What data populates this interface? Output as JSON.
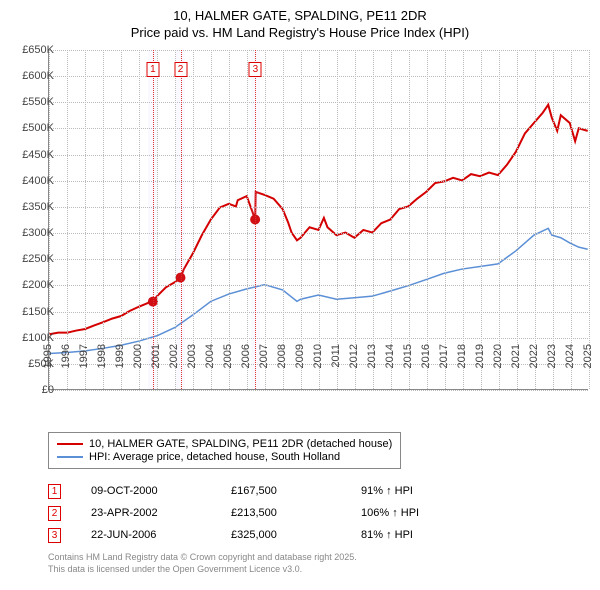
{
  "title_line1": "10, HALMER GATE, SPALDING, PE11 2DR",
  "title_line2": "Price paid vs. HM Land Registry's House Price Index (HPI)",
  "chart": {
    "type": "line",
    "background_color": "#ffffff",
    "grid_color": "#bbbbbb",
    "axis_color": "#888888",
    "x": {
      "min": 1995,
      "max": 2025,
      "tick_step": 1,
      "label_fontsize": 11
    },
    "y": {
      "min": 0,
      "max": 650000,
      "tick_step": 50000,
      "label_fontsize": 11,
      "tick_labels": [
        "£0",
        "£50K",
        "£100K",
        "£150K",
        "£200K",
        "£250K",
        "£300K",
        "£350K",
        "£400K",
        "£450K",
        "£500K",
        "£550K",
        "£600K",
        "£650K"
      ]
    },
    "series": [
      {
        "name": "10, HALMER GATE, SPALDING, PE11 2DR (detached house)",
        "color": "#d40000",
        "line_width": 2,
        "data": [
          [
            1995,
            105000
          ],
          [
            1995.5,
            108000
          ],
          [
            1996,
            108000
          ],
          [
            1996.5,
            112000
          ],
          [
            1997,
            115000
          ],
          [
            1997.5,
            122000
          ],
          [
            1998,
            128000
          ],
          [
            1998.5,
            135000
          ],
          [
            1999,
            140000
          ],
          [
            1999.5,
            150000
          ],
          [
            2000,
            158000
          ],
          [
            2000.5,
            165000
          ],
          [
            2000.77,
            167500
          ],
          [
            2001,
            178000
          ],
          [
            2001.5,
            195000
          ],
          [
            2002,
            205000
          ],
          [
            2002.31,
            213500
          ],
          [
            2002.5,
            230000
          ],
          [
            2003,
            260000
          ],
          [
            2003.5,
            295000
          ],
          [
            2004,
            325000
          ],
          [
            2004.5,
            348000
          ],
          [
            2005,
            355000
          ],
          [
            2005.4,
            350000
          ],
          [
            2005.5,
            362000
          ],
          [
            2006,
            370000
          ],
          [
            2006.47,
            325000
          ],
          [
            2006.5,
            378000
          ],
          [
            2007,
            372000
          ],
          [
            2007.5,
            365000
          ],
          [
            2008,
            345000
          ],
          [
            2008.3,
            320000
          ],
          [
            2008.5,
            300000
          ],
          [
            2008.8,
            285000
          ],
          [
            2009,
            290000
          ],
          [
            2009.5,
            310000
          ],
          [
            2010,
            305000
          ],
          [
            2010.3,
            328000
          ],
          [
            2010.5,
            310000
          ],
          [
            2011,
            295000
          ],
          [
            2011.5,
            300000
          ],
          [
            2012,
            290000
          ],
          [
            2012.5,
            305000
          ],
          [
            2013,
            300000
          ],
          [
            2013.5,
            318000
          ],
          [
            2014,
            325000
          ],
          [
            2014.5,
            345000
          ],
          [
            2015,
            350000
          ],
          [
            2015.5,
            365000
          ],
          [
            2016,
            378000
          ],
          [
            2016.5,
            395000
          ],
          [
            2017,
            398000
          ],
          [
            2017.5,
            405000
          ],
          [
            2018,
            400000
          ],
          [
            2018.5,
            412000
          ],
          [
            2019,
            408000
          ],
          [
            2019.5,
            415000
          ],
          [
            2020,
            410000
          ],
          [
            2020.5,
            430000
          ],
          [
            2021,
            455000
          ],
          [
            2021.5,
            490000
          ],
          [
            2022,
            510000
          ],
          [
            2022.5,
            530000
          ],
          [
            2022.8,
            545000
          ],
          [
            2023,
            520000
          ],
          [
            2023.3,
            495000
          ],
          [
            2023.5,
            525000
          ],
          [
            2024,
            510000
          ],
          [
            2024.3,
            475000
          ],
          [
            2024.5,
            500000
          ],
          [
            2025,
            495000
          ]
        ]
      },
      {
        "name": "HPI: Average price, detached house, South Holland",
        "color": "#5b8fd6",
        "line_width": 1.5,
        "data": [
          [
            1995,
            68000
          ],
          [
            1996,
            70000
          ],
          [
            1997,
            73000
          ],
          [
            1998,
            78000
          ],
          [
            1999,
            84000
          ],
          [
            2000,
            92000
          ],
          [
            2001,
            102000
          ],
          [
            2002,
            118000
          ],
          [
            2003,
            142000
          ],
          [
            2004,
            168000
          ],
          [
            2005,
            182000
          ],
          [
            2006,
            192000
          ],
          [
            2007,
            200000
          ],
          [
            2008,
            190000
          ],
          [
            2008.8,
            168000
          ],
          [
            2009,
            172000
          ],
          [
            2010,
            180000
          ],
          [
            2011,
            172000
          ],
          [
            2012,
            175000
          ],
          [
            2013,
            178000
          ],
          [
            2014,
            188000
          ],
          [
            2015,
            198000
          ],
          [
            2016,
            210000
          ],
          [
            2017,
            222000
          ],
          [
            2018,
            230000
          ],
          [
            2019,
            235000
          ],
          [
            2020,
            240000
          ],
          [
            2021,
            265000
          ],
          [
            2022,
            295000
          ],
          [
            2022.8,
            308000
          ],
          [
            2023,
            295000
          ],
          [
            2023.5,
            290000
          ],
          [
            2024,
            280000
          ],
          [
            2024.5,
            272000
          ],
          [
            2025,
            268000
          ]
        ]
      }
    ],
    "scatter_points": [
      {
        "x": 2000.77,
        "y": 167500,
        "color": "#d40000",
        "size": 5
      },
      {
        "x": 2002.31,
        "y": 213500,
        "color": "#d40000",
        "size": 5
      },
      {
        "x": 2006.47,
        "y": 325000,
        "color": "#d40000",
        "size": 5
      }
    ],
    "event_markers": [
      {
        "n": "1",
        "x": 2000.77,
        "band_half_width": 0.25
      },
      {
        "n": "2",
        "x": 2002.31,
        "band_half_width": 0.25
      },
      {
        "n": "3",
        "x": 2006.47,
        "band_half_width": 0.25
      }
    ],
    "event_marker_border": "#d00000"
  },
  "legend": {
    "items": [
      {
        "color": "#d40000",
        "label": "10, HALMER GATE, SPALDING, PE11 2DR (detached house)"
      },
      {
        "color": "#5b8fd6",
        "label": "HPI: Average price, detached house, South Holland"
      }
    ]
  },
  "events_table": [
    {
      "n": "1",
      "date": "09-OCT-2000",
      "price": "£167,500",
      "pct": "91% ↑ HPI"
    },
    {
      "n": "2",
      "date": "23-APR-2002",
      "price": "£213,500",
      "pct": "106% ↑ HPI"
    },
    {
      "n": "3",
      "date": "22-JUN-2006",
      "price": "£325,000",
      "pct": "81% ↑ HPI"
    }
  ],
  "footer_line1": "Contains HM Land Registry data © Crown copyright and database right 2025.",
  "footer_line2": "This data is licensed under the Open Government Licence v3.0."
}
